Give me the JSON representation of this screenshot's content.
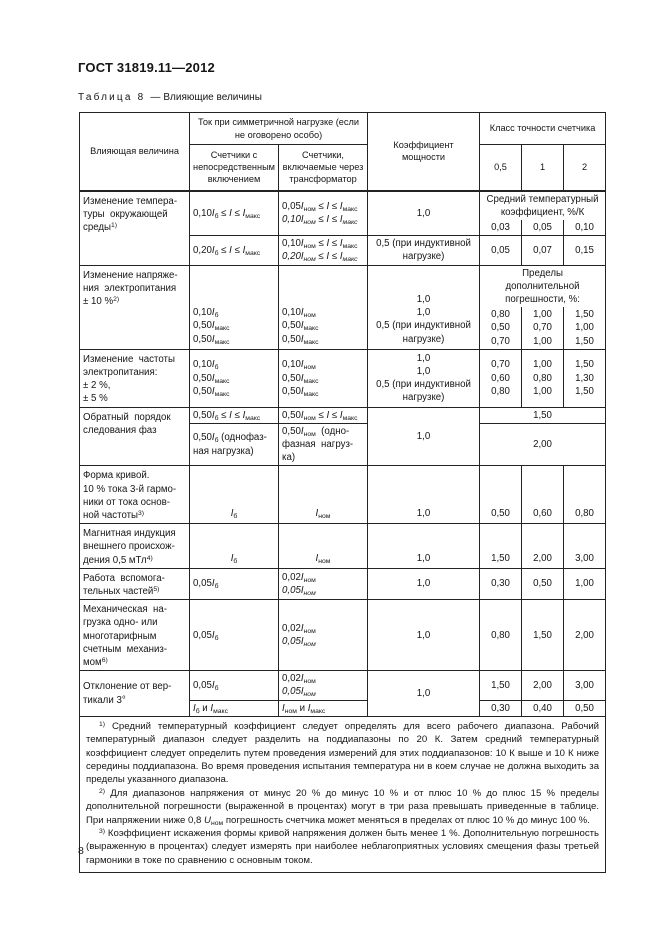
{
  "header": {
    "title": "ГОСТ 31819.11—2012"
  },
  "caption": {
    "label": "Таблица 8",
    "dash": "—",
    "text": "Влияющие величины"
  },
  "footer": {
    "page_number": "8"
  },
  "colors": {
    "text": "#161616",
    "border": "#232323",
    "background": "#ffffff"
  },
  "table": {
    "rows": [
      {
        "cls": "hdr h32",
        "name": "table-header-row-1",
        "cells": [
          {
            "html": "Влияющая величина",
            "rs": 2,
            "name": "header-influencing-quantity"
          },
          {
            "html": "Ток при симметричной нагрузке (если не оговорено особо)",
            "cs": 2,
            "name": "header-current-symmetrical-load"
          },
          {
            "html": "Коэффициент мощности",
            "rs": 2,
            "name": "header-power-factor"
          },
          {
            "html": "Класс точности счетчика",
            "cs": 3,
            "name": "header-accuracy-class"
          }
        ]
      },
      {
        "cls": "hdr h46",
        "name": "table-header-row-2",
        "cells": [
          {
            "html": "Счетчики с<br>непосредственным<br>включением",
            "name": "header-meters-direct-connection"
          },
          {
            "html": "Счетчики,<br>включаемые через<br>трансформатор",
            "name": "header-meters-via-transformer"
          },
          {
            "html": "0,5",
            "name": "header-class-0-5"
          },
          {
            "html": "1",
            "name": "header-class-1"
          },
          {
            "html": "2",
            "name": "header-class-2"
          }
        ]
      },
      {
        "cls": "thick",
        "name": "row-temperature-a",
        "cells": [
          {
            "html": "Изменение темпера-<br>туры&nbsp;&nbsp;окружающей<br>среды<sup>1)</sup>",
            "rs": 3,
            "cls": "l top",
            "name": "row-label-temperature-change"
          },
          {
            "html": "0,10<i>I</i><sub>б</sub> ≤ <i>I</i> ≤ <i>I</i><sub>макс</sub>",
            "rs": 2,
            "cls": "l",
            "name": "cell-current-direct"
          },
          {
            "html": "0,05<i>I</i><sub>ном</sub> ≤ <i>I</i> ≤ <i>I</i><sub>макс</sub><br><i>0,10I<sub>ном</sub> ≤ I ≤ I<sub>макс</sub></i>",
            "rs": 2,
            "cls": "l",
            "name": "cell-current-transformer"
          },
          {
            "html": "1,0",
            "rs": 2,
            "name": "cell-power-factor"
          },
          {
            "html": "Средний температурный<br>коэффициент, %/К",
            "cs": 3,
            "cls": "nb",
            "name": "subheader-mean-temperature-coefficient"
          }
        ]
      },
      {
        "name": "row-temperature-b",
        "cells": [
          {
            "html": "0,03",
            "cls": "nt",
            "name": "cell-class-0-5-value"
          },
          {
            "html": "0,05",
            "cls": "nt",
            "name": "cell-class-1-value"
          },
          {
            "html": "0,10",
            "cls": "nt",
            "name": "cell-class-2-value"
          }
        ]
      },
      {
        "name": "row-temperature-c",
        "cells": [
          {
            "html": "0,20<i>I</i><sub>б</sub> ≤ <i>I</i> ≤ <i>I</i><sub>макс</sub>",
            "cls": "l",
            "name": "cell-current-direct"
          },
          {
            "html": "0,10<i>I</i><sub>ном</sub> ≤ <i>I</i> ≤ <i>I</i><sub>макс</sub><br><i>0,20I<sub>ном</sub> ≤ I ≤ I<sub>макс</sub></i>",
            "cls": "l",
            "name": "cell-current-transformer"
          },
          {
            "html": "0,5 (при индуктивной<br>нагрузке)",
            "name": "cell-power-factor"
          },
          {
            "html": "0,05",
            "name": "cell-class-0-5-value"
          },
          {
            "html": "0,07",
            "name": "cell-class-1-value"
          },
          {
            "html": "0,15",
            "name": "cell-class-2-value"
          }
        ]
      },
      {
        "name": "row-voltage-a",
        "cells": [
          {
            "html": "Изменение напряже-<br>ния&nbsp;&nbsp;электропитания<br>± 10 %<sup>2)</sup>",
            "rs": 2,
            "cls": "l top",
            "name": "row-label-voltage-change"
          },
          {
            "html": "0,10<i>I</i><sub>б</sub><br>0,50<i>I</i><sub>макс</sub><br>0,50<i>I</i><sub>макс</sub>",
            "rs": 2,
            "cls": "l b",
            "name": "cell-current-direct"
          },
          {
            "html": "0,10<i>I</i><sub>ном</sub><br>0,50<i>I</i><sub>макс</sub><br>0,50<i>I</i><sub>макс</sub>",
            "rs": 2,
            "cls": "l b",
            "name": "cell-current-transformer"
          },
          {
            "html": "1,0<br>1,0<br>0,5 (при индуктивной<br>нагрузке)",
            "rs": 2,
            "cls": "b",
            "name": "cell-power-factor"
          },
          {
            "html": "Пределы<br>дополнительной<br>погрешности, %:",
            "cs": 3,
            "cls": "nb",
            "name": "subheader-additional-error-limits"
          }
        ]
      },
      {
        "name": "row-voltage-b",
        "cells": [
          {
            "html": "0,80<br>0,50<br>0,70",
            "cls": "nt",
            "name": "cell-class-0-5-value"
          },
          {
            "html": "1,00<br>0,70<br>1,00",
            "cls": "nt",
            "name": "cell-class-1-value"
          },
          {
            "html": "1,50<br>1,00<br>1,50",
            "cls": "nt",
            "name": "cell-class-2-value"
          }
        ]
      },
      {
        "name": "row-frequency",
        "cells": [
          {
            "html": "Изменение&nbsp;&nbsp;частоты<br>электропитания:<br>± 2 %,<br>± 5 %",
            "cls": "l top",
            "name": "row-label-frequency-change"
          },
          {
            "html": "0,10<i>I</i><sub>б</sub><br>0,50<i>I</i><sub>макс</sub><br>0,50<i>I</i><sub>макс</sub>",
            "cls": "l",
            "name": "cell-current-direct"
          },
          {
            "html": "0,10<i>I</i><sub>ном</sub><br>0,50<i>I</i><sub>макс</sub><br>0,50<i>I</i><sub>макс</sub>",
            "cls": "l",
            "name": "cell-current-transformer"
          },
          {
            "html": "1,0<br>1,0<br>0,5 (при индуктивной<br>нагрузке)",
            "name": "cell-power-factor"
          },
          {
            "html": "0,70<br>0,60<br>0,80",
            "name": "cell-class-0-5-value"
          },
          {
            "html": "1,00<br>0,80<br>1,00",
            "name": "cell-class-1-value"
          },
          {
            "html": "1,50<br>1,30<br>1,50",
            "name": "cell-class-2-value"
          }
        ]
      },
      {
        "name": "row-phase-sequence-a",
        "cells": [
          {
            "html": "Обратный&nbsp;&nbsp;порядок<br>следования фаз",
            "rs": 2,
            "cls": "l top",
            "name": "row-label-reverse-phase-sequence"
          },
          {
            "html": "0,50<i>I</i><sub>б</sub> ≤ <i>I</i> ≤ <i>I</i><sub>макс</sub>",
            "cls": "l",
            "name": "cell-current-direct"
          },
          {
            "html": "0,50<i>I</i><sub>ном</sub> ≤ <i>I</i> ≤ <i>I</i><sub>макс</sub>",
            "cls": "l",
            "name": "cell-current-transformer"
          },
          {
            "html": "1,0",
            "rs": 2,
            "name": "cell-power-factor"
          },
          {
            "html": "1,50",
            "cs": 3,
            "name": "cell-class-all-value"
          }
        ]
      },
      {
        "name": "row-phase-sequence-b",
        "cells": [
          {
            "html": "0,50<i>I</i><sub>б</sub> (однофаз-<br>ная нагрузка)",
            "cls": "l",
            "name": "cell-current-direct"
          },
          {
            "html": "0,50<i>I</i><sub>ном</sub>&nbsp;&nbsp;(одно-<br>фазная&nbsp;&nbsp;нагруз-<br>ка)",
            "cls": "l",
            "name": "cell-current-transformer"
          },
          {
            "html": "2,00",
            "cs": 3,
            "name": "cell-class-all-value"
          }
        ]
      },
      {
        "name": "row-waveform",
        "cells": [
          {
            "html": "Форма кривой.<br>10 % тока 3-й гармо-<br>ники от тока основ-<br>ной частоты<sup>3)</sup>",
            "cls": "l top",
            "name": "row-label-waveform"
          },
          {
            "html": "<i>I</i><sub>б</sub>",
            "cls": "b",
            "name": "cell-current-direct"
          },
          {
            "html": "<i>I</i><sub>ном</sub>",
            "cls": "b",
            "name": "cell-current-transformer"
          },
          {
            "html": "1,0",
            "cls": "b",
            "name": "cell-power-factor"
          },
          {
            "html": "0,50",
            "cls": "b",
            "name": "cell-class-0-5-value"
          },
          {
            "html": "0,60",
            "cls": "b",
            "name": "cell-class-1-value"
          },
          {
            "html": "0,80",
            "cls": "b",
            "name": "cell-class-2-value"
          }
        ]
      },
      {
        "name": "row-magnetic-induction",
        "cells": [
          {
            "html": "Магнитная индукция<br>внешнего происхож-<br>дения 0,5 мТл<sup>4)</sup>",
            "cls": "l top",
            "name": "row-label-magnetic-induction"
          },
          {
            "html": "<i>I</i><sub>б</sub>",
            "cls": "b",
            "name": "cell-current-direct"
          },
          {
            "html": "<i>I</i><sub>ном</sub>",
            "cls": "b",
            "name": "cell-current-transformer"
          },
          {
            "html": "1,0",
            "cls": "b",
            "name": "cell-power-factor"
          },
          {
            "html": "1,50",
            "cls": "b",
            "name": "cell-class-0-5-value"
          },
          {
            "html": "2,00",
            "cls": "b",
            "name": "cell-class-1-value"
          },
          {
            "html": "3,00",
            "cls": "b",
            "name": "cell-class-2-value"
          }
        ]
      },
      {
        "name": "row-auxiliary-parts",
        "cells": [
          {
            "html": "Работа&nbsp;&nbsp;вспомога-<br>тельных частей<sup>5)</sup>",
            "cls": "l top",
            "name": "row-label-auxiliary-parts"
          },
          {
            "html": "0,05<i>I</i><sub>б</sub>",
            "cls": "l",
            "name": "cell-current-direct"
          },
          {
            "html": "0,02<i>I</i><sub>ном</sub><br><i>0,05I<sub>ном</sub></i>",
            "cls": "l",
            "name": "cell-current-transformer"
          },
          {
            "html": "1,0",
            "name": "cell-power-factor"
          },
          {
            "html": "0,30",
            "name": "cell-class-0-5-value"
          },
          {
            "html": "0,50",
            "name": "cell-class-1-value"
          },
          {
            "html": "1,00",
            "name": "cell-class-2-value"
          }
        ]
      },
      {
        "name": "row-mechanical-load",
        "cells": [
          {
            "html": "Механическая&nbsp;&nbsp;на-<br>грузка одно- или<br>многотарифным<br>счетным&nbsp;&nbsp;механиз-<br>мом<sup>6)</sup>",
            "cls": "l top",
            "name": "row-label-mechanical-load"
          },
          {
            "html": "0,05<i>I</i><sub>б</sub>",
            "cls": "l",
            "name": "cell-current-direct"
          },
          {
            "html": "0,02<i>I</i><sub>ном</sub><br><i>0,05I<sub>ном</sub></i>",
            "cls": "l",
            "name": "cell-current-transformer"
          },
          {
            "html": "1,0",
            "name": "cell-power-factor"
          },
          {
            "html": "0,80",
            "name": "cell-class-0-5-value"
          },
          {
            "html": "1,50",
            "name": "cell-class-1-value"
          },
          {
            "html": "2,00",
            "name": "cell-class-2-value"
          }
        ]
      },
      {
        "name": "row-tilt-a",
        "cells": [
          {
            "html": "Отклонение от вер-<br>тикали 3°",
            "rs": 2,
            "cls": "l",
            "name": "row-label-tilt"
          },
          {
            "html": "0,05<i>I</i><sub>б</sub>",
            "cls": "l",
            "name": "cell-current-direct"
          },
          {
            "html": "0,02<i>I</i><sub>ном</sub><br><i>0,05I<sub>ном</sub></i>",
            "cls": "l",
            "name": "cell-current-transformer"
          },
          {
            "html": "1,0",
            "rs": 2,
            "name": "cell-power-factor"
          },
          {
            "html": "1,50",
            "name": "cell-class-0-5-value"
          },
          {
            "html": "2,00",
            "name": "cell-class-1-value"
          },
          {
            "html": "3,00",
            "name": "cell-class-2-value"
          }
        ]
      },
      {
        "name": "row-tilt-b",
        "cells": [
          {
            "html": "<i>I</i><sub>б</sub> и <i>I</i><sub>макс</sub>",
            "cls": "l",
            "name": "cell-current-direct"
          },
          {
            "html": "<i>I</i><sub>ном</sub> и <i>I</i><sub>макс</sub>",
            "cls": "l",
            "name": "cell-current-transformer"
          },
          {
            "html": "0,30",
            "name": "cell-class-0-5-value"
          },
          {
            "html": "0,40",
            "name": "cell-class-1-value"
          },
          {
            "html": "0,50",
            "name": "cell-class-2-value"
          }
        ]
      },
      {
        "name": "row-footnotes",
        "cells": [
          {
            "footnotes": true,
            "cs": 7,
            "cls": "l fncell",
            "name": "footnotes-cell"
          }
        ]
      }
    ]
  },
  "footnotes": [
    "<sup>1)</sup> Средний температурный коэффициент следует определять для всего рабочего диапазона. Рабочий температурный диапазон следует разделить на поддиапазоны по 20 К. Затем средний температурный коэффициент следует определить путем проведения измерений для этих поддиапазонов: 10 К выше и 10 К ниже середины поддиапазона. Во время проведения испытания температура ни в коем случае не должна выходить за пределы указанного диапазона.",
    "<sup>2)</sup> Для диапазонов напряжения от минус 20 % до минус 10 % и от плюс 10 % до плюс 15 % пределы дополнительной погрешности (выраженной в процентах) могут в три раза превышать приведенные в таблице. При напряжении ниже 0,8 <i>U</i><sub>ном</sub> погрешность счетчика может меняться в пределах от плюс 10 % до минус 100 %.",
    "<sup>3)</sup> Коэффициент искажения формы кривой напряжения должен быть менее 1 %. Дополнительную погрешность (выраженную в процентах) следует измерять при наиболее неблагоприятных условиях смещения фазы третьей гармоники в токе по сравнению с основным током."
  ]
}
